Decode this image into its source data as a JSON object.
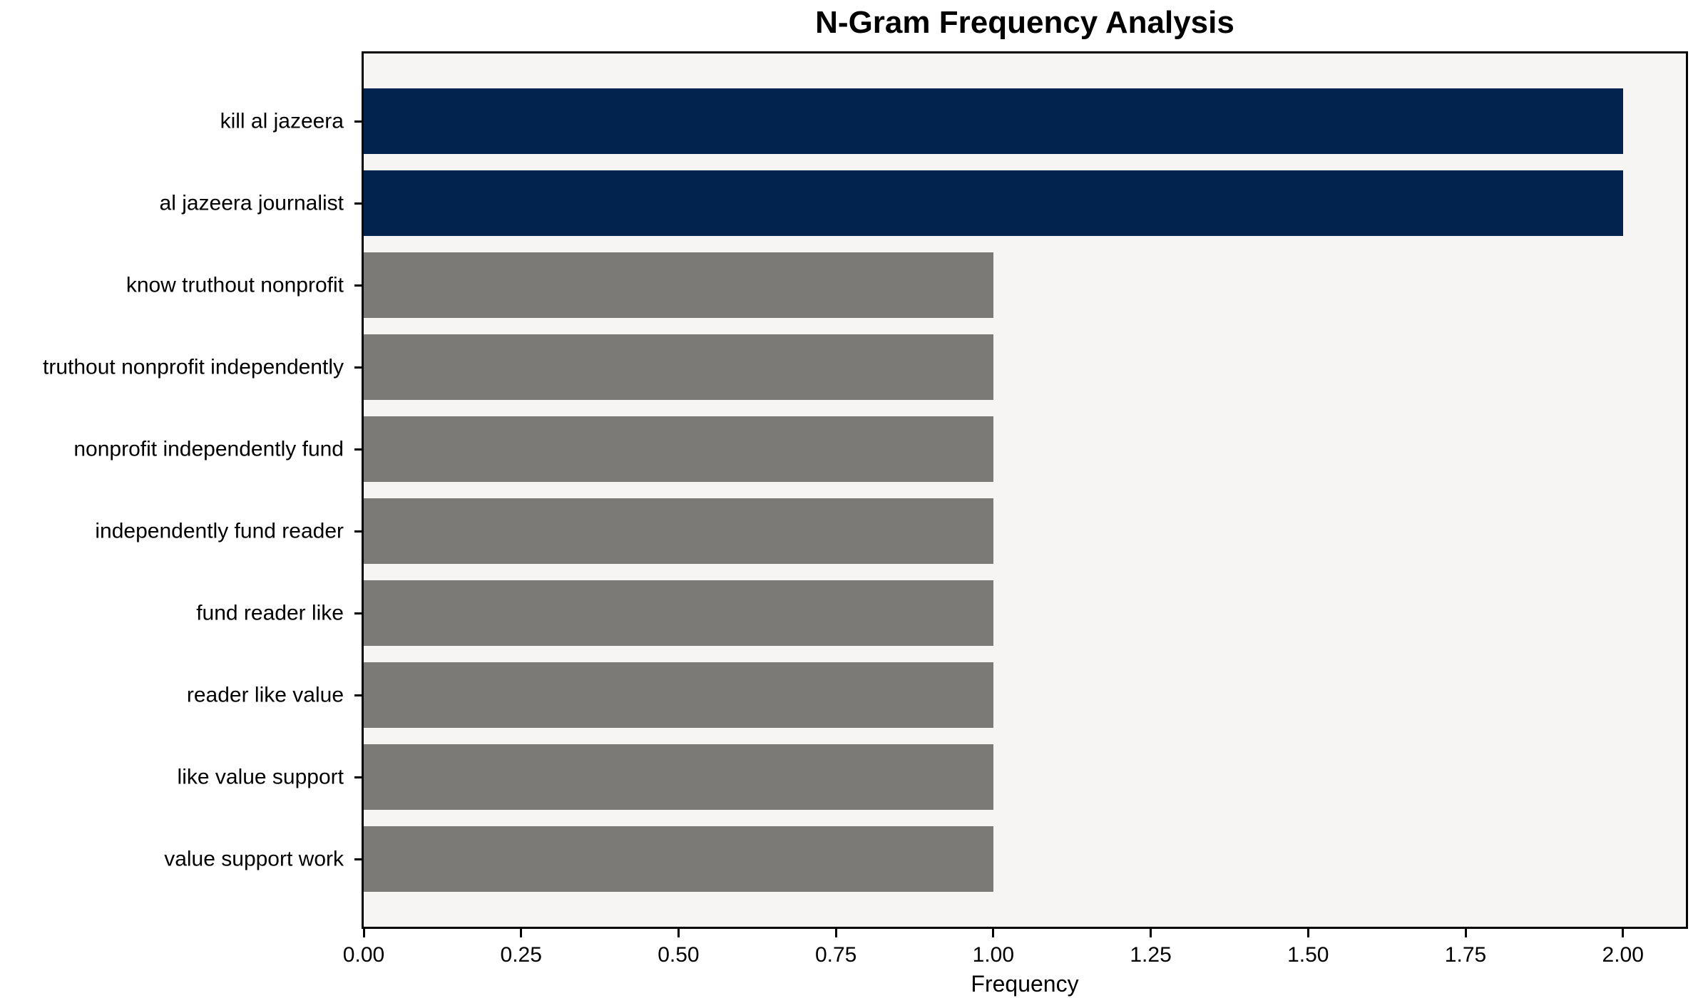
{
  "title": "N-Gram Frequency Analysis",
  "chart_data": {
    "type": "bar",
    "orientation": "horizontal",
    "title": "N-Gram Frequency Analysis",
    "xlabel": "Frequency",
    "ylabel": "",
    "categories": [
      "kill al jazeera",
      "al jazeera journalist",
      "know truthout nonprofit",
      "truthout nonprofit independently",
      "nonprofit independently fund",
      "independently fund reader",
      "fund reader like",
      "reader like value",
      "like value support",
      "value support work"
    ],
    "values": [
      2,
      2,
      1,
      1,
      1,
      1,
      1,
      1,
      1,
      1
    ],
    "bar_colors": [
      "#02234d",
      "#02234d",
      "#7c7a77",
      "#7c7a77",
      "#7c7a77",
      "#7c7a77",
      "#7c7a77",
      "#7c7a77",
      "#7c7a77",
      "#7c7a77"
    ],
    "x_ticks": [
      {
        "value": 0.0,
        "label": "0.00"
      },
      {
        "value": 0.25,
        "label": "0.25"
      },
      {
        "value": 0.5,
        "label": "0.50"
      },
      {
        "value": 0.75,
        "label": "0.75"
      },
      {
        "value": 1.0,
        "label": "1.00"
      },
      {
        "value": 1.25,
        "label": "1.25"
      },
      {
        "value": 1.5,
        "label": "1.50"
      },
      {
        "value": 1.75,
        "label": "1.75"
      },
      {
        "value": 2.0,
        "label": "2.00"
      }
    ],
    "xlim": [
      0,
      2.1
    ],
    "grid": false,
    "legend": null,
    "plot_background": "#f6f5f4",
    "figure_background": "#ffffff",
    "spine_color": "#000000"
  }
}
